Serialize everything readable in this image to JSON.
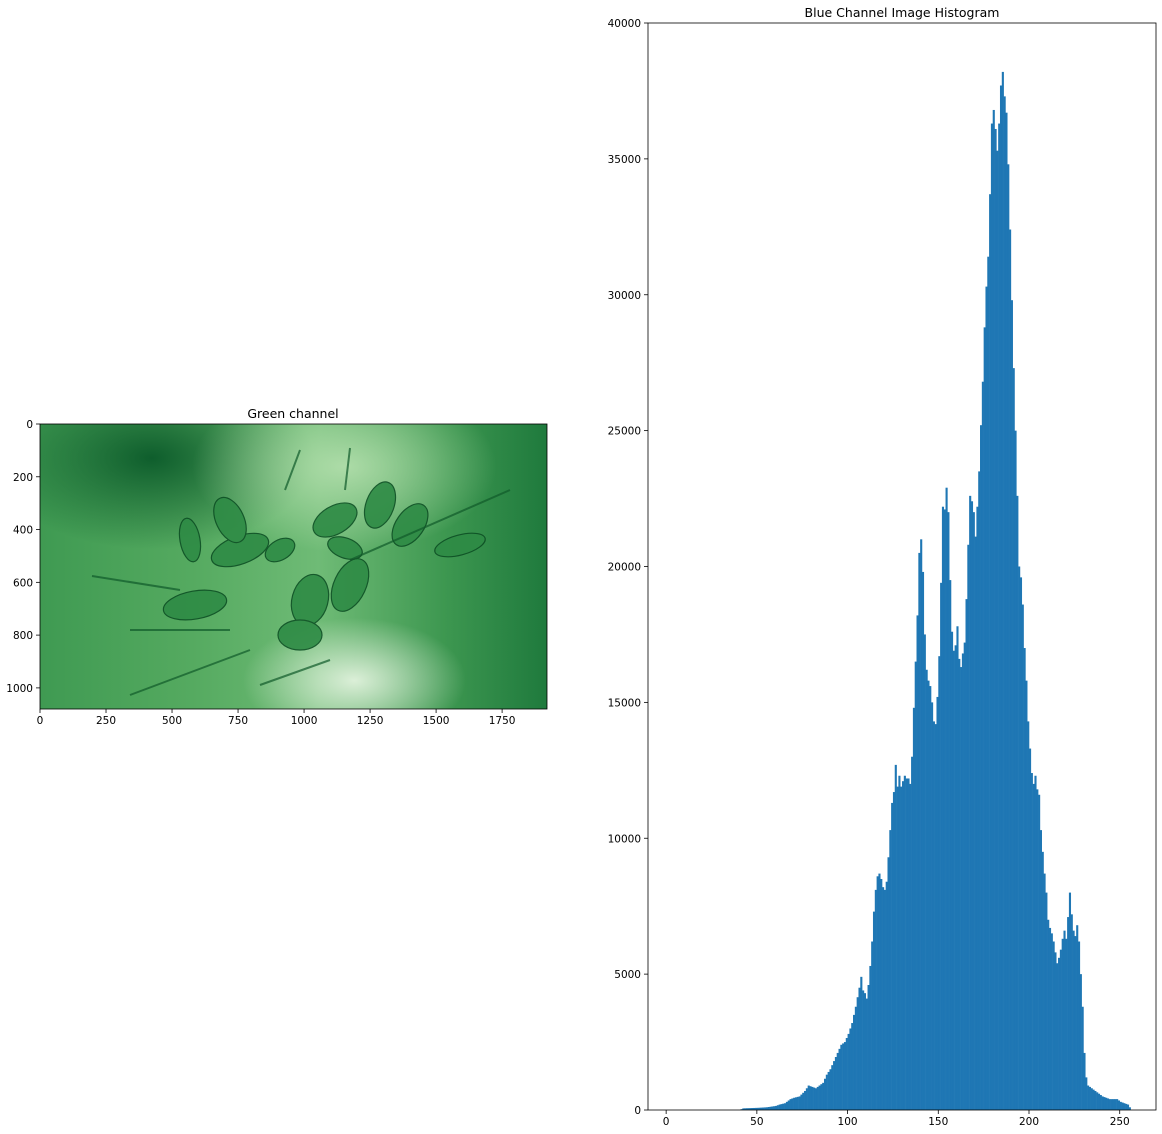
{
  "figure": {
    "background": "#ffffff"
  },
  "left_panel": {
    "title": "Green channel",
    "colormap": [
      "#f7fcf5",
      "#c7e9c0",
      "#74c476",
      "#238b45",
      "#00441b"
    ],
    "image_extent": {
      "width": 1920,
      "height": 1080
    },
    "xticks": [
      0,
      250,
      500,
      750,
      1000,
      1250,
      1500,
      1750
    ],
    "xtick_labels": [
      "0",
      "250",
      "500",
      "750",
      "1000",
      "1250",
      "1500",
      "1750"
    ],
    "yticks": [
      0,
      200,
      400,
      600,
      800,
      1000
    ],
    "ytick_labels": [
      "0",
      "200",
      "400",
      "600",
      "800",
      "1000"
    ]
  },
  "chart_data": {
    "type": "bar",
    "title": "Blue Channel Image Histogram",
    "xlabel": "",
    "ylabel": "",
    "bar_color": "#1f77b4",
    "xlim": [
      -10,
      270
    ],
    "ylim": [
      0,
      40000
    ],
    "xticks": [
      0,
      50,
      100,
      150,
      200,
      250
    ],
    "xtick_labels": [
      "0",
      "50",
      "100",
      "150",
      "200",
      "250"
    ],
    "yticks": [
      0,
      5000,
      10000,
      15000,
      20000,
      25000,
      30000,
      35000,
      40000
    ],
    "ytick_labels": [
      "0",
      "5000",
      "10000",
      "15000",
      "20000",
      "25000",
      "30000",
      "35000",
      "40000"
    ],
    "grid": false,
    "bin_width": 1,
    "anchors": [
      [
        0,
        0
      ],
      [
        40,
        0
      ],
      [
        42,
        60
      ],
      [
        50,
        80
      ],
      [
        55,
        100
      ],
      [
        60,
        150
      ],
      [
        62,
        200
      ],
      [
        65,
        250
      ],
      [
        68,
        400
      ],
      [
        70,
        450
      ],
      [
        73,
        500
      ],
      [
        76,
        700
      ],
      [
        78,
        900
      ],
      [
        80,
        850
      ],
      [
        82,
        800
      ],
      [
        84,
        900
      ],
      [
        86,
        1000
      ],
      [
        88,
        1300
      ],
      [
        90,
        1500
      ],
      [
        92,
        1800
      ],
      [
        94,
        2100
      ],
      [
        96,
        2400
      ],
      [
        98,
        2500
      ],
      [
        100,
        2800
      ],
      [
        102,
        3200
      ],
      [
        104,
        3800
      ],
      [
        106,
        4500
      ],
      [
        107,
        4900
      ],
      [
        108,
        4400
      ],
      [
        109,
        4300
      ],
      [
        110,
        4100
      ],
      [
        111,
        4600
      ],
      [
        112,
        5300
      ],
      [
        113,
        6200
      ],
      [
        114,
        7300
      ],
      [
        115,
        8100
      ],
      [
        116,
        8600
      ],
      [
        117,
        8700
      ],
      [
        118,
        8500
      ],
      [
        119,
        8200
      ],
      [
        120,
        8100
      ],
      [
        121,
        8400
      ],
      [
        122,
        9300
      ],
      [
        123,
        10300
      ],
      [
        124,
        11300
      ],
      [
        125,
        11700
      ],
      [
        126,
        12700
      ],
      [
        127,
        11900
      ],
      [
        128,
        12300
      ],
      [
        129,
        11900
      ],
      [
        130,
        12100
      ],
      [
        131,
        12300
      ],
      [
        132,
        12200
      ],
      [
        133,
        12200
      ],
      [
        134,
        12000
      ],
      [
        135,
        13000
      ],
      [
        136,
        14800
      ],
      [
        137,
        16500
      ],
      [
        138,
        18200
      ],
      [
        139,
        20500
      ],
      [
        140,
        21000
      ],
      [
        141,
        19800
      ],
      [
        142,
        17500
      ],
      [
        143,
        16200
      ],
      [
        144,
        15800
      ],
      [
        145,
        15600
      ],
      [
        146,
        15000
      ],
      [
        147,
        14300
      ],
      [
        148,
        14200
      ],
      [
        149,
        15200
      ],
      [
        150,
        16700
      ],
      [
        151,
        19400
      ],
      [
        152,
        22200
      ],
      [
        153,
        22100
      ],
      [
        154,
        22900
      ],
      [
        155,
        22000
      ],
      [
        156,
        19500
      ],
      [
        157,
        17600
      ],
      [
        158,
        16900
      ],
      [
        159,
        17100
      ],
      [
        160,
        17800
      ],
      [
        161,
        16600
      ],
      [
        162,
        16300
      ],
      [
        163,
        16800
      ],
      [
        164,
        17200
      ],
      [
        165,
        18800
      ],
      [
        166,
        20800
      ],
      [
        167,
        22600
      ],
      [
        168,
        22400
      ],
      [
        169,
        22000
      ],
      [
        170,
        21100
      ],
      [
        171,
        22200
      ],
      [
        172,
        23500
      ],
      [
        173,
        25200
      ],
      [
        174,
        26800
      ],
      [
        175,
        28800
      ],
      [
        176,
        30300
      ],
      [
        177,
        31400
      ],
      [
        178,
        33700
      ],
      [
        179,
        36300
      ],
      [
        180,
        36800
      ],
      [
        181,
        36100
      ],
      [
        182,
        35300
      ],
      [
        183,
        36300
      ],
      [
        184,
        37700
      ],
      [
        185,
        38200
      ],
      [
        186,
        37300
      ],
      [
        187,
        36700
      ],
      [
        188,
        34800
      ],
      [
        189,
        32400
      ],
      [
        190,
        29800
      ],
      [
        191,
        27300
      ],
      [
        192,
        25000
      ],
      [
        193,
        22600
      ],
      [
        194,
        20000
      ],
      [
        195,
        19600
      ],
      [
        196,
        18600
      ],
      [
        197,
        17000
      ],
      [
        198,
        15800
      ],
      [
        199,
        14300
      ],
      [
        200,
        13300
      ],
      [
        201,
        12400
      ],
      [
        202,
        12000
      ],
      [
        203,
        12300
      ],
      [
        204,
        11800
      ],
      [
        205,
        11600
      ],
      [
        206,
        10300
      ],
      [
        207,
        9500
      ],
      [
        208,
        8700
      ],
      [
        209,
        8000
      ],
      [
        210,
        7000
      ],
      [
        211,
        6700
      ],
      [
        212,
        6500
      ],
      [
        213,
        6200
      ],
      [
        214,
        5800
      ],
      [
        215,
        5400
      ],
      [
        216,
        5600
      ],
      [
        217,
        5900
      ],
      [
        218,
        6300
      ],
      [
        219,
        6600
      ],
      [
        220,
        6300
      ],
      [
        221,
        7100
      ],
      [
        222,
        8000
      ],
      [
        223,
        7200
      ],
      [
        224,
        6600
      ],
      [
        225,
        6400
      ],
      [
        226,
        6800
      ],
      [
        227,
        6200
      ],
      [
        228,
        5000
      ],
      [
        229,
        3800
      ],
      [
        230,
        2100
      ],
      [
        231,
        1200
      ],
      [
        232,
        900
      ],
      [
        234,
        800
      ],
      [
        236,
        700
      ],
      [
        238,
        600
      ],
      [
        240,
        500
      ],
      [
        244,
        400
      ],
      [
        248,
        400
      ],
      [
        250,
        300
      ],
      [
        252,
        250
      ],
      [
        254,
        200
      ],
      [
        255,
        100
      ],
      [
        256,
        0
      ]
    ]
  }
}
